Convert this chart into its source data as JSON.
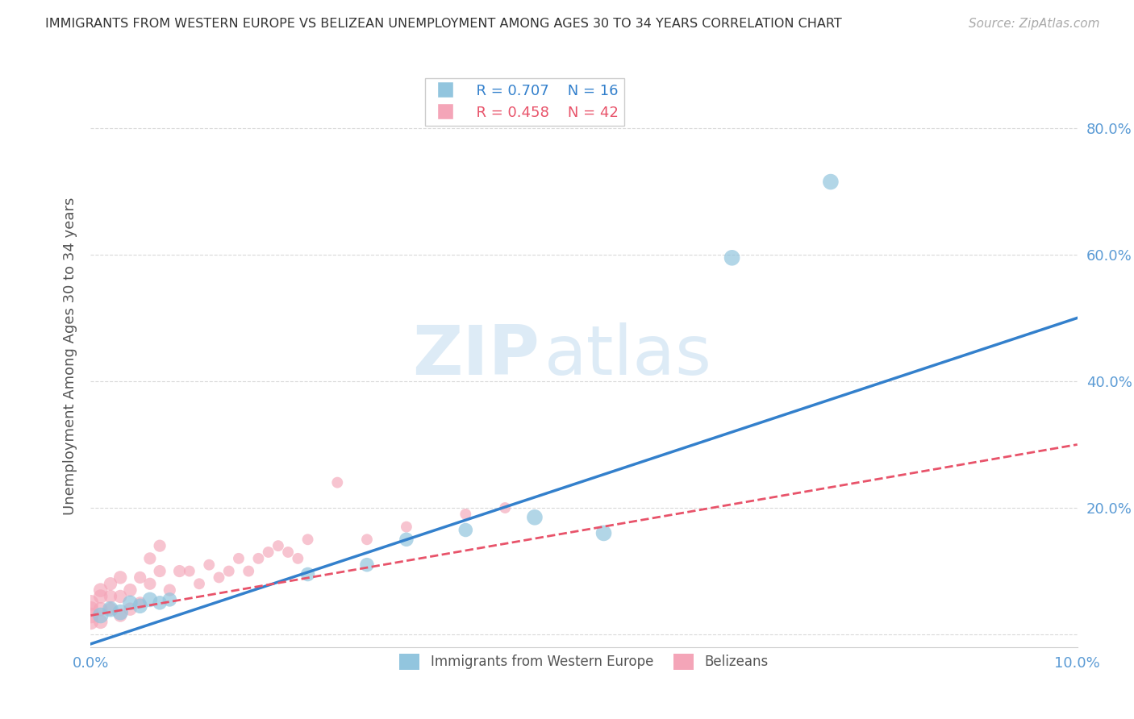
{
  "title": "IMMIGRANTS FROM WESTERN EUROPE VS BELIZEAN UNEMPLOYMENT AMONG AGES 30 TO 34 YEARS CORRELATION CHART",
  "source": "Source: ZipAtlas.com",
  "ylabel": "Unemployment Among Ages 30 to 34 years",
  "xlim": [
    0.0,
    0.1
  ],
  "ylim": [
    -0.02,
    0.9
  ],
  "yticks": [
    0.0,
    0.2,
    0.4,
    0.6,
    0.8
  ],
  "xticks": [
    0.0,
    0.02,
    0.04,
    0.06,
    0.08,
    0.1
  ],
  "blue_r": "R = 0.707",
  "blue_n": "N = 16",
  "pink_r": "R = 0.458",
  "pink_n": "N = 42",
  "blue_color": "#92c5de",
  "pink_color": "#f4a5b8",
  "blue_line_color": "#3380cc",
  "pink_line_color": "#e8536a",
  "watermark_zip": "ZIP",
  "watermark_atlas": "atlas",
  "blue_scatter_x": [
    0.001,
    0.002,
    0.003,
    0.004,
    0.005,
    0.006,
    0.007,
    0.008,
    0.022,
    0.028,
    0.032,
    0.038,
    0.045,
    0.052,
    0.065,
    0.075
  ],
  "blue_scatter_y": [
    0.03,
    0.04,
    0.035,
    0.05,
    0.045,
    0.055,
    0.05,
    0.055,
    0.095,
    0.11,
    0.15,
    0.165,
    0.185,
    0.16,
    0.595,
    0.715
  ],
  "blue_scatter_sizes": [
    200,
    200,
    200,
    180,
    180,
    180,
    160,
    160,
    160,
    160,
    160,
    160,
    200,
    200,
    200,
    200
  ],
  "pink_scatter_x": [
    0.0,
    0.0,
    0.0,
    0.0,
    0.001,
    0.001,
    0.001,
    0.001,
    0.002,
    0.002,
    0.002,
    0.003,
    0.003,
    0.003,
    0.004,
    0.004,
    0.005,
    0.005,
    0.006,
    0.006,
    0.007,
    0.007,
    0.008,
    0.009,
    0.01,
    0.011,
    0.012,
    0.013,
    0.014,
    0.015,
    0.016,
    0.017,
    0.018,
    0.019,
    0.02,
    0.021,
    0.022,
    0.025,
    0.028,
    0.032,
    0.038,
    0.042
  ],
  "pink_scatter_y": [
    0.02,
    0.03,
    0.04,
    0.05,
    0.02,
    0.04,
    0.06,
    0.07,
    0.04,
    0.06,
    0.08,
    0.03,
    0.06,
    0.09,
    0.04,
    0.07,
    0.05,
    0.09,
    0.08,
    0.12,
    0.1,
    0.14,
    0.07,
    0.1,
    0.1,
    0.08,
    0.11,
    0.09,
    0.1,
    0.12,
    0.1,
    0.12,
    0.13,
    0.14,
    0.13,
    0.12,
    0.15,
    0.24,
    0.15,
    0.17,
    0.19,
    0.2
  ],
  "pink_scatter_sizes": [
    200,
    200,
    200,
    200,
    160,
    160,
    160,
    160,
    140,
    140,
    140,
    140,
    140,
    140,
    140,
    140,
    120,
    120,
    120,
    120,
    120,
    120,
    120,
    120,
    100,
    100,
    100,
    100,
    100,
    100,
    100,
    100,
    100,
    100,
    100,
    100,
    100,
    100,
    100,
    100,
    100,
    100
  ],
  "blue_trendline_x": [
    0.0,
    0.1
  ],
  "blue_trendline_y": [
    -0.015,
    0.5
  ],
  "pink_trendline_x": [
    0.0,
    0.1
  ],
  "pink_trendline_y": [
    0.03,
    0.3
  ]
}
